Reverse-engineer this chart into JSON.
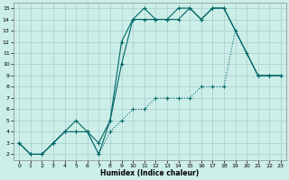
{
  "title": "",
  "xlabel": "Humidex (Indice chaleur)",
  "bg_color": "#cceee8",
  "grid_color": "#aacccc",
  "line_color": "#006868",
  "xlim": [
    -0.5,
    23.5
  ],
  "ylim": [
    1.5,
    15.5
  ],
  "xticks": [
    0,
    1,
    2,
    3,
    4,
    5,
    6,
    7,
    8,
    9,
    10,
    11,
    12,
    13,
    14,
    15,
    16,
    17,
    18,
    19,
    20,
    21,
    22,
    23
  ],
  "yticks": [
    2,
    3,
    4,
    5,
    6,
    7,
    8,
    9,
    10,
    11,
    12,
    13,
    14,
    15
  ],
  "line1_x": [
    0,
    1,
    2,
    3,
    4,
    5,
    6,
    7,
    8,
    9,
    10,
    11,
    12,
    13,
    14,
    15,
    16,
    17,
    18,
    21,
    22,
    23
  ],
  "line1_y": [
    3,
    2,
    2,
    3,
    4,
    5,
    4,
    3,
    5,
    12,
    14,
    15,
    14,
    14,
    14,
    15,
    14,
    15,
    15,
    9,
    9,
    9
  ],
  "line2_x": [
    0,
    1,
    2,
    3,
    4,
    5,
    6,
    7,
    8,
    9,
    10,
    11,
    12,
    13,
    14,
    15,
    16,
    17,
    18,
    19,
    20,
    21,
    22,
    23
  ],
  "line2_y": [
    3,
    2,
    2,
    3,
    4,
    4,
    4,
    2,
    4,
    5,
    6,
    6,
    7,
    7,
    7,
    7,
    8,
    8,
    8,
    13,
    11,
    9,
    9,
    9
  ],
  "line3_x": [
    0,
    1,
    2,
    3,
    4,
    5,
    6,
    7,
    8,
    9,
    10,
    11,
    12,
    13,
    14,
    15,
    16,
    17,
    18,
    21,
    22,
    23
  ],
  "line3_y": [
    3,
    2,
    2,
    3,
    4,
    4,
    4,
    2,
    5,
    10,
    14,
    14,
    14,
    14,
    15,
    15,
    14,
    15,
    15,
    9,
    9,
    9
  ],
  "line1_style": "solid",
  "line2_style": "dotted",
  "line3_style": "solid"
}
